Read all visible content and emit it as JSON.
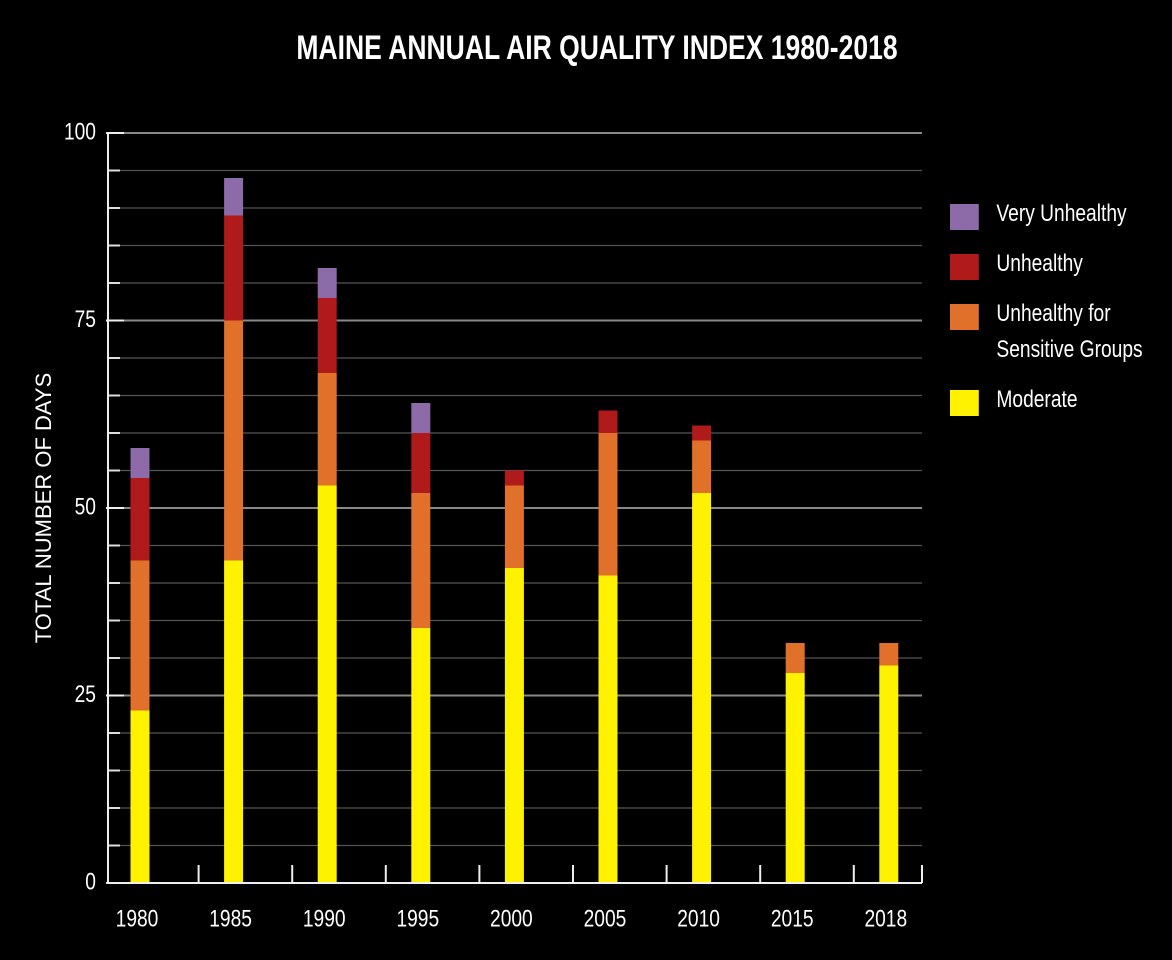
{
  "chart_data": {
    "type": "stacked_bar",
    "title": "MAINE ANNUAL AIR QUALITY INDEX 1980-2018",
    "y_label": "TOTAL NUMBER OF DAYS",
    "categories": [
      "1980",
      "1985",
      "1990",
      "1995",
      "2000",
      "2005",
      "2010",
      "2015",
      "2018"
    ],
    "series": [
      {
        "name": "Moderate",
        "color": "#fff200",
        "values": [
          23,
          43,
          53,
          34,
          42,
          41,
          52,
          28,
          29
        ]
      },
      {
        "name": "Unhealthy for Sensitive Groups",
        "color": "#e0702a",
        "values": [
          20,
          32,
          15,
          18,
          11,
          19,
          7,
          4,
          3
        ]
      },
      {
        "name": "Unhealthy",
        "color": "#b01a1a",
        "values": [
          11,
          14,
          10,
          8,
          2,
          3,
          2,
          0,
          0
        ]
      },
      {
        "name": "Very Unhealthy",
        "color": "#8d6aa8",
        "values": [
          4,
          5,
          4,
          4,
          0,
          0,
          0,
          0,
          0
        ]
      }
    ],
    "ylim": [
      0,
      100
    ],
    "yticks": [
      0,
      25,
      50,
      75,
      100
    ],
    "minor_yticks": [
      5,
      10,
      15,
      20,
      30,
      35,
      40,
      45,
      55,
      60,
      65,
      70,
      80,
      85,
      90,
      95
    ],
    "grid": true,
    "legend": "right"
  }
}
